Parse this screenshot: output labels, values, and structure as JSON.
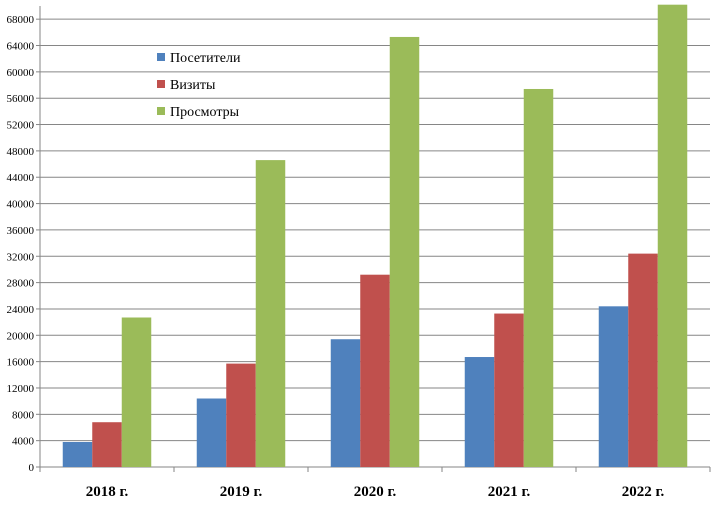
{
  "chart_data": {
    "type": "bar",
    "categories": [
      "2018 г.",
      "2019 г.",
      "2020 г.",
      "2021 г.",
      "2022 г."
    ],
    "series": [
      {
        "name": "Посетители",
        "color": "#4F81BD",
        "values": [
          3800,
          10400,
          19400,
          16700,
          24400
        ]
      },
      {
        "name": "Визиты",
        "color": "#C0504D",
        "values": [
          6800,
          15700,
          29200,
          23300,
          32400
        ]
      },
      {
        "name": "Просмотры",
        "color": "#9BBB59",
        "values": [
          22700,
          46600,
          65300,
          57400,
          70200
        ]
      }
    ],
    "y_ticks": [
      "0",
      "4000",
      "8000",
      "12000",
      "16000",
      "20000",
      "24000",
      "28000",
      "32000",
      "36000",
      "40000",
      "44000",
      "48000",
      "52000",
      "56000",
      "60000",
      "64000",
      "68000"
    ],
    "ylim": [
      0,
      70000
    ],
    "grid": true,
    "legend_position": "top-left"
  }
}
